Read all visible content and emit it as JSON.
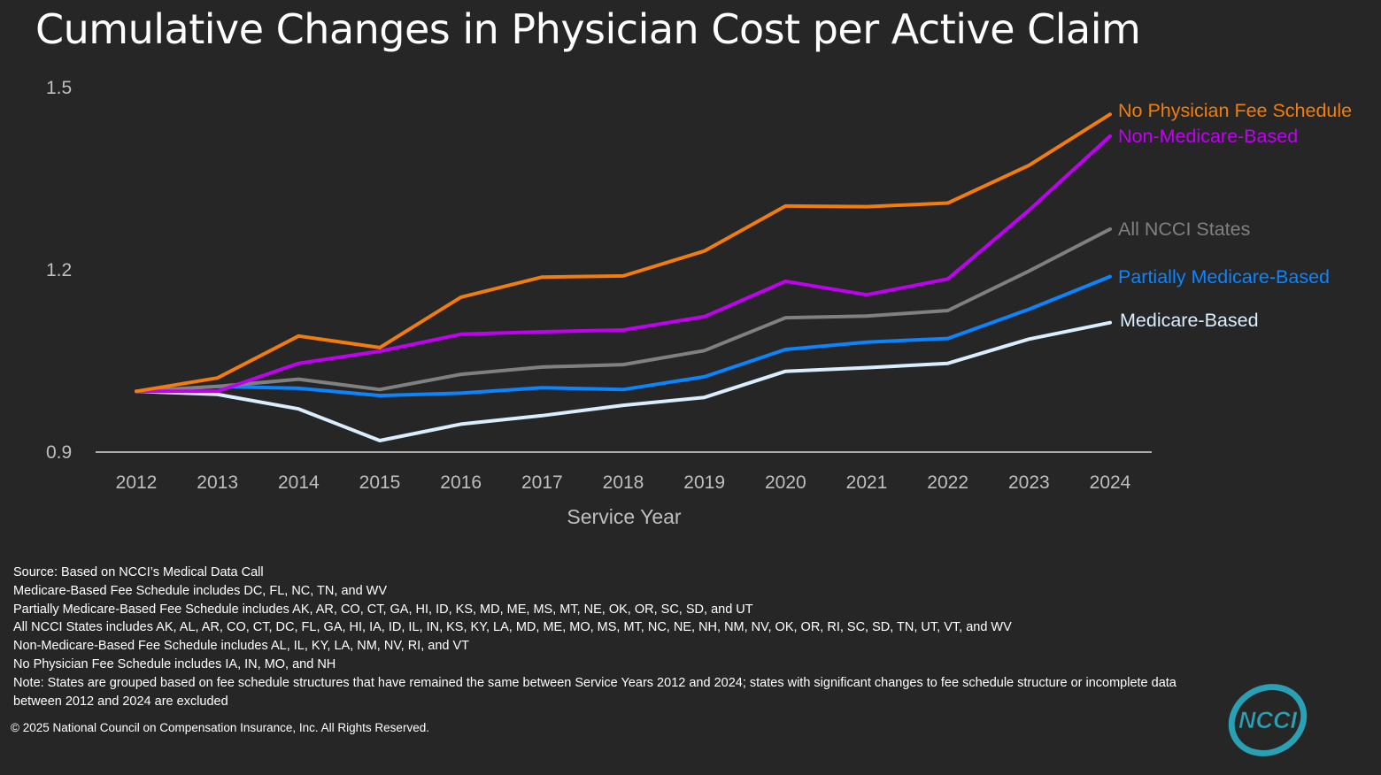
{
  "title": "Cumulative Changes in Physician Cost per Active Claim",
  "chart_data": {
    "type": "line",
    "title": "Cumulative Changes in Physician Cost per Active Claim",
    "xlabel": "Service Year",
    "ylabel": "",
    "x": [
      "2012",
      "2013",
      "2014",
      "2015",
      "2016",
      "2017",
      "2018",
      "2019",
      "2020",
      "2021",
      "2022",
      "2023",
      "2024"
    ],
    "ylim": [
      0.9,
      1.5
    ],
    "yticks": [
      "1.5",
      "1.2",
      "0.9"
    ],
    "yticks_values": [
      1.5,
      1.2,
      0.9
    ],
    "grid": false,
    "legend": "direct labels at line ends",
    "series": [
      {
        "name": "No Physician Fee Schedule",
        "color": "#f27c0c",
        "values": [
          1.0,
          1.022,
          1.091,
          1.072,
          1.155,
          1.188,
          1.19,
          1.231,
          1.305,
          1.304,
          1.31,
          1.372,
          1.456
        ]
      },
      {
        "name": "Non-Medicare-Based",
        "color": "#c000f0",
        "values": [
          1.0,
          1.0,
          1.046,
          1.066,
          1.094,
          1.098,
          1.101,
          1.123,
          1.181,
          1.159,
          1.185,
          1.298,
          1.42
        ]
      },
      {
        "name": "All NCCI States",
        "color": "#808080",
        "values": [
          1.0,
          1.008,
          1.02,
          1.003,
          1.028,
          1.04,
          1.044,
          1.067,
          1.121,
          1.124,
          1.133,
          1.198,
          1.267
        ]
      },
      {
        "name": "Partially Medicare-Based",
        "color": "#0a84ff",
        "values": [
          1.0,
          1.008,
          1.005,
          0.993,
          0.997,
          1.006,
          1.003,
          1.024,
          1.069,
          1.081,
          1.087,
          1.135,
          1.189
        ]
      },
      {
        "name": "Medicare-Based",
        "color": "#dbeeff",
        "values": [
          1.0,
          0.995,
          0.971,
          0.919,
          0.946,
          0.96,
          0.977,
          0.99,
          1.033,
          1.039,
          1.046,
          1.086,
          1.113
        ]
      }
    ]
  },
  "notes": [
    "Source: Based on NCCI’s Medical Data Call",
    "Medicare-Based Fee Schedule includes DC, FL, NC, TN, and WV",
    "Partially Medicare-Based Fee Schedule includes AK, AR, CO, CT, GA, HI, ID, KS, MD, ME, MS, MT, NE, OK, OR, SC, SD, and UT",
    "All NCCI States includes AK, AL, AR, CO, CT, DC, FL, GA, HI, IA, ID, IL, IN, KS, KY, LA, MD, ME, MO, MS, MT, NC, NE, NH, NM, NV, OK, OR, RI, SC, SD, TN, UT, VT, and WV",
    "Non-Medicare-Based Fee Schedule includes AL, IL, KY, LA, NM, NV, RI, and VT",
    "No Physician Fee Schedule includes IA, IN, MO, and NH",
    "Note: States are grouped based on fee schedule structures that have remained the same between Service Years 2012 and 2024; states with significant changes to fee schedule structure or incomplete data between 2012 and 2024 are excluded"
  ],
  "copyright": "© 2025 National Council on Compensation Insurance, Inc. All Rights Reserved.",
  "logo": {
    "text": "NCCI",
    "color": "#2aa0b4",
    "icon": "ncci-logo"
  }
}
